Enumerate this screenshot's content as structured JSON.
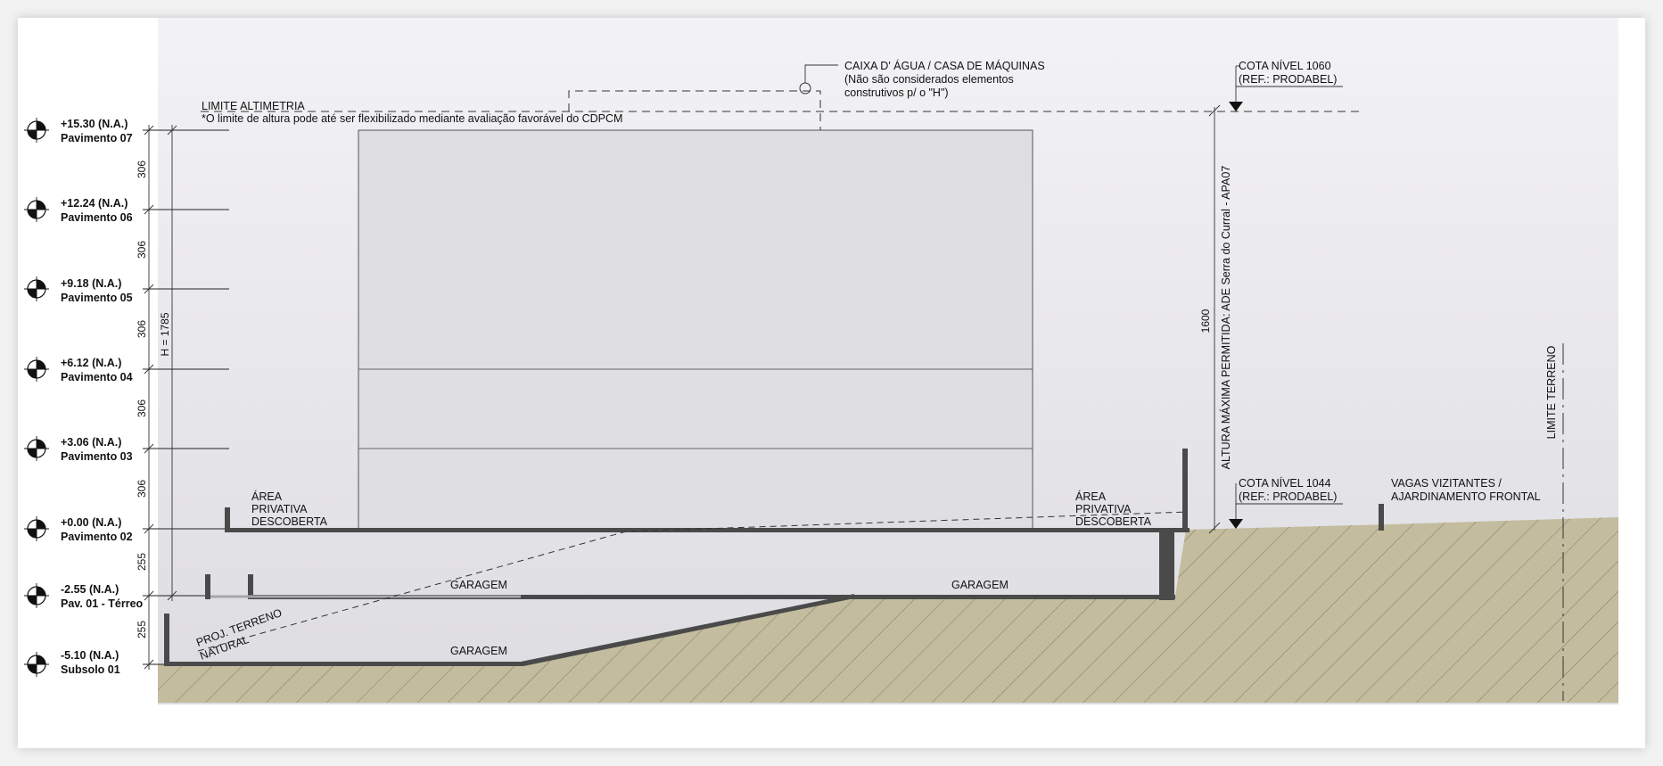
{
  "levels": [
    {
      "elevation": "+15.30 (N.A.)",
      "name": "Pavimento 07"
    },
    {
      "elevation": "+12.24 (N.A.)",
      "name": "Pavimento 06"
    },
    {
      "elevation": "+9.18 (N.A.)",
      "name": "Pavimento 05"
    },
    {
      "elevation": "+6.12 (N.A.)",
      "name": "Pavimento 04"
    },
    {
      "elevation": "+3.06 (N.A.)",
      "name": "Pavimento 03"
    },
    {
      "elevation": "+0.00 (N.A.)",
      "name": "Pavimento 02"
    },
    {
      "elevation": "-2.55 (N.A.)",
      "name": "Pav. 01 - Térreo"
    },
    {
      "elevation": "-5.10 (N.A.)",
      "name": "Subsolo 01"
    }
  ],
  "dimensions": {
    "floor_heights": [
      "306",
      "306",
      "306",
      "306",
      "306",
      "255",
      "255"
    ],
    "total_height": "H = 1785",
    "max_height": "1600"
  },
  "annotations": {
    "limite_altimetria": "LIMITE ALTIMETRIA",
    "limite_note": "*O limite de altura pode até ser flexibilizado mediante avaliação favorável do CDPCM",
    "caixa_line1": "CAIXA D' ÁGUA / CASA DE MÁQUINAS",
    "caixa_line2": "(Não são considerados elementos",
    "caixa_line3": "construtivos p/ o \"H\")",
    "cota_1060_line1": "COTA NÍVEL 1060",
    "cota_1060_line2": "(REF.: PRODABEL)",
    "cota_1044_line1": "COTA NÍVEL 1044",
    "cota_1044_line2": "(REF.: PRODABEL)",
    "altura_maxima": "ALTURA MÁXIMA PERMITIDA: ADE Serra do Curral - APA07",
    "limite_terreno": "LIMITE TERRENO",
    "vagas_line1": "VAGAS VIZITANTES /",
    "vagas_line2": "AJARDINAMENTO FRONTAL",
    "area_left": [
      "ÁREA",
      "PRIVATIVA",
      "DESCOBERTA"
    ],
    "area_right": [
      "ÁREA",
      "PRIVATIVA",
      "DESCOBERTA"
    ],
    "garagem_upper_left": "GARAGEM",
    "garagem_upper_right": "GARAGEM",
    "garagem_lower": "GARAGEM",
    "proj_terreno_line1": "PROJ. TERRENO",
    "proj_terreno_line2": "NATURAL"
  },
  "colors": {
    "sky_top": "#f1f0f3",
    "sky_bottom": "#dedde2",
    "earth": "#c3bc9e",
    "slab": "#4a4a4a",
    "building": "#dfdee3"
  }
}
